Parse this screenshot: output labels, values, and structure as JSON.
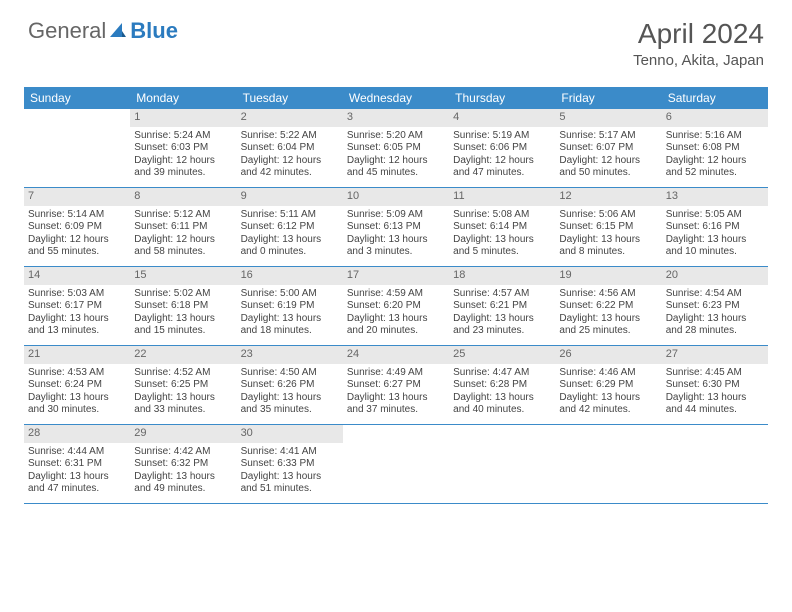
{
  "brand": {
    "part1": "General",
    "part2": "Blue"
  },
  "header": {
    "month_title": "April 2024",
    "location": "Tenno, Akita, Japan"
  },
  "colors": {
    "header_bar": "#3b8bc9",
    "day_number_bg": "#e8e8e8",
    "text": "#444444",
    "rule": "#3b8bc9"
  },
  "weekdays": [
    "Sunday",
    "Monday",
    "Tuesday",
    "Wednesday",
    "Thursday",
    "Friday",
    "Saturday"
  ],
  "weeks": [
    [
      null,
      {
        "n": "1",
        "sr": "Sunrise: 5:24 AM",
        "ss": "Sunset: 6:03 PM",
        "dl1": "Daylight: 12 hours",
        "dl2": "and 39 minutes."
      },
      {
        "n": "2",
        "sr": "Sunrise: 5:22 AM",
        "ss": "Sunset: 6:04 PM",
        "dl1": "Daylight: 12 hours",
        "dl2": "and 42 minutes."
      },
      {
        "n": "3",
        "sr": "Sunrise: 5:20 AM",
        "ss": "Sunset: 6:05 PM",
        "dl1": "Daylight: 12 hours",
        "dl2": "and 45 minutes."
      },
      {
        "n": "4",
        "sr": "Sunrise: 5:19 AM",
        "ss": "Sunset: 6:06 PM",
        "dl1": "Daylight: 12 hours",
        "dl2": "and 47 minutes."
      },
      {
        "n": "5",
        "sr": "Sunrise: 5:17 AM",
        "ss": "Sunset: 6:07 PM",
        "dl1": "Daylight: 12 hours",
        "dl2": "and 50 minutes."
      },
      {
        "n": "6",
        "sr": "Sunrise: 5:16 AM",
        "ss": "Sunset: 6:08 PM",
        "dl1": "Daylight: 12 hours",
        "dl2": "and 52 minutes."
      }
    ],
    [
      {
        "n": "7",
        "sr": "Sunrise: 5:14 AM",
        "ss": "Sunset: 6:09 PM",
        "dl1": "Daylight: 12 hours",
        "dl2": "and 55 minutes."
      },
      {
        "n": "8",
        "sr": "Sunrise: 5:12 AM",
        "ss": "Sunset: 6:11 PM",
        "dl1": "Daylight: 12 hours",
        "dl2": "and 58 minutes."
      },
      {
        "n": "9",
        "sr": "Sunrise: 5:11 AM",
        "ss": "Sunset: 6:12 PM",
        "dl1": "Daylight: 13 hours",
        "dl2": "and 0 minutes."
      },
      {
        "n": "10",
        "sr": "Sunrise: 5:09 AM",
        "ss": "Sunset: 6:13 PM",
        "dl1": "Daylight: 13 hours",
        "dl2": "and 3 minutes."
      },
      {
        "n": "11",
        "sr": "Sunrise: 5:08 AM",
        "ss": "Sunset: 6:14 PM",
        "dl1": "Daylight: 13 hours",
        "dl2": "and 5 minutes."
      },
      {
        "n": "12",
        "sr": "Sunrise: 5:06 AM",
        "ss": "Sunset: 6:15 PM",
        "dl1": "Daylight: 13 hours",
        "dl2": "and 8 minutes."
      },
      {
        "n": "13",
        "sr": "Sunrise: 5:05 AM",
        "ss": "Sunset: 6:16 PM",
        "dl1": "Daylight: 13 hours",
        "dl2": "and 10 minutes."
      }
    ],
    [
      {
        "n": "14",
        "sr": "Sunrise: 5:03 AM",
        "ss": "Sunset: 6:17 PM",
        "dl1": "Daylight: 13 hours",
        "dl2": "and 13 minutes."
      },
      {
        "n": "15",
        "sr": "Sunrise: 5:02 AM",
        "ss": "Sunset: 6:18 PM",
        "dl1": "Daylight: 13 hours",
        "dl2": "and 15 minutes."
      },
      {
        "n": "16",
        "sr": "Sunrise: 5:00 AM",
        "ss": "Sunset: 6:19 PM",
        "dl1": "Daylight: 13 hours",
        "dl2": "and 18 minutes."
      },
      {
        "n": "17",
        "sr": "Sunrise: 4:59 AM",
        "ss": "Sunset: 6:20 PM",
        "dl1": "Daylight: 13 hours",
        "dl2": "and 20 minutes."
      },
      {
        "n": "18",
        "sr": "Sunrise: 4:57 AM",
        "ss": "Sunset: 6:21 PM",
        "dl1": "Daylight: 13 hours",
        "dl2": "and 23 minutes."
      },
      {
        "n": "19",
        "sr": "Sunrise: 4:56 AM",
        "ss": "Sunset: 6:22 PM",
        "dl1": "Daylight: 13 hours",
        "dl2": "and 25 minutes."
      },
      {
        "n": "20",
        "sr": "Sunrise: 4:54 AM",
        "ss": "Sunset: 6:23 PM",
        "dl1": "Daylight: 13 hours",
        "dl2": "and 28 minutes."
      }
    ],
    [
      {
        "n": "21",
        "sr": "Sunrise: 4:53 AM",
        "ss": "Sunset: 6:24 PM",
        "dl1": "Daylight: 13 hours",
        "dl2": "and 30 minutes."
      },
      {
        "n": "22",
        "sr": "Sunrise: 4:52 AM",
        "ss": "Sunset: 6:25 PM",
        "dl1": "Daylight: 13 hours",
        "dl2": "and 33 minutes."
      },
      {
        "n": "23",
        "sr": "Sunrise: 4:50 AM",
        "ss": "Sunset: 6:26 PM",
        "dl1": "Daylight: 13 hours",
        "dl2": "and 35 minutes."
      },
      {
        "n": "24",
        "sr": "Sunrise: 4:49 AM",
        "ss": "Sunset: 6:27 PM",
        "dl1": "Daylight: 13 hours",
        "dl2": "and 37 minutes."
      },
      {
        "n": "25",
        "sr": "Sunrise: 4:47 AM",
        "ss": "Sunset: 6:28 PM",
        "dl1": "Daylight: 13 hours",
        "dl2": "and 40 minutes."
      },
      {
        "n": "26",
        "sr": "Sunrise: 4:46 AM",
        "ss": "Sunset: 6:29 PM",
        "dl1": "Daylight: 13 hours",
        "dl2": "and 42 minutes."
      },
      {
        "n": "27",
        "sr": "Sunrise: 4:45 AM",
        "ss": "Sunset: 6:30 PM",
        "dl1": "Daylight: 13 hours",
        "dl2": "and 44 minutes."
      }
    ],
    [
      {
        "n": "28",
        "sr": "Sunrise: 4:44 AM",
        "ss": "Sunset: 6:31 PM",
        "dl1": "Daylight: 13 hours",
        "dl2": "and 47 minutes."
      },
      {
        "n": "29",
        "sr": "Sunrise: 4:42 AM",
        "ss": "Sunset: 6:32 PM",
        "dl1": "Daylight: 13 hours",
        "dl2": "and 49 minutes."
      },
      {
        "n": "30",
        "sr": "Sunrise: 4:41 AM",
        "ss": "Sunset: 6:33 PM",
        "dl1": "Daylight: 13 hours",
        "dl2": "and 51 minutes."
      },
      null,
      null,
      null,
      null
    ]
  ]
}
